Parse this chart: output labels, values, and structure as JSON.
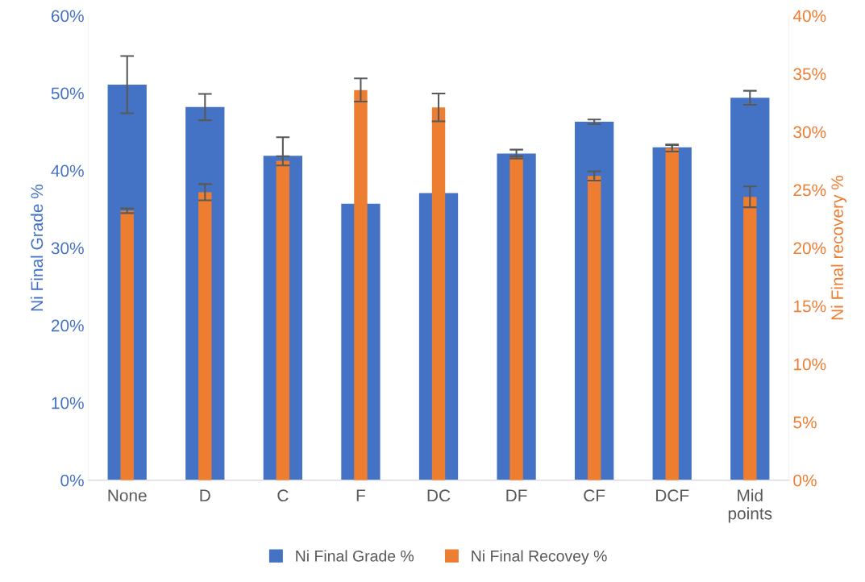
{
  "chart_data": {
    "type": "bar",
    "categories": [
      "None",
      "D",
      "C",
      "F",
      "DC",
      "DF",
      "CF",
      "DCF",
      "Mid\npoints"
    ],
    "ylabel": "Ni Final Grade %",
    "y2label": "Ni Final recovery %",
    "ylim": [
      0,
      60
    ],
    "yticks": [
      {
        "value": 0,
        "label": "0%"
      },
      {
        "value": 10,
        "label": "10%"
      },
      {
        "value": 20,
        "label": "20%"
      },
      {
        "value": 30,
        "label": "30%"
      },
      {
        "value": 40,
        "label": "40%"
      },
      {
        "value": 50,
        "label": "50%"
      },
      {
        "value": 60,
        "label": "60%"
      }
    ],
    "y2lim": [
      0,
      40
    ],
    "y2ticks": [
      {
        "value": 0,
        "label": "0%"
      },
      {
        "value": 5,
        "label": "5%"
      },
      {
        "value": 10,
        "label": "10%"
      },
      {
        "value": 15,
        "label": "15%"
      },
      {
        "value": 20,
        "label": "20%"
      },
      {
        "value": 25,
        "label": "25%"
      },
      {
        "value": 30,
        "label": "30%"
      },
      {
        "value": 35,
        "label": "35%"
      },
      {
        "value": 40,
        "label": "40%"
      }
    ],
    "series": [
      {
        "name": "Ni Final Grade %",
        "color": "#4472c4",
        "values": [
          51.1,
          48.2,
          41.9,
          35.7,
          37.1,
          42.2,
          46.3,
          43.0,
          49.4
        ],
        "errors": [
          3.7,
          1.7,
          2.4,
          null,
          null,
          0.5,
          0.3,
          0.3,
          0.9
        ]
      },
      {
        "name": "Ni Final Recovey %",
        "color": "#ed7d31",
        "axis": "y2",
        "values": [
          23.2,
          24.8,
          27.5,
          33.6,
          32.1,
          27.8,
          26.2,
          28.6,
          24.4
        ],
        "errors": [
          0.2,
          0.7,
          0.4,
          1.0,
          1.2,
          0.1,
          0.4,
          0.3,
          0.9
        ]
      }
    ],
    "grid": false,
    "legend": "bottom"
  }
}
